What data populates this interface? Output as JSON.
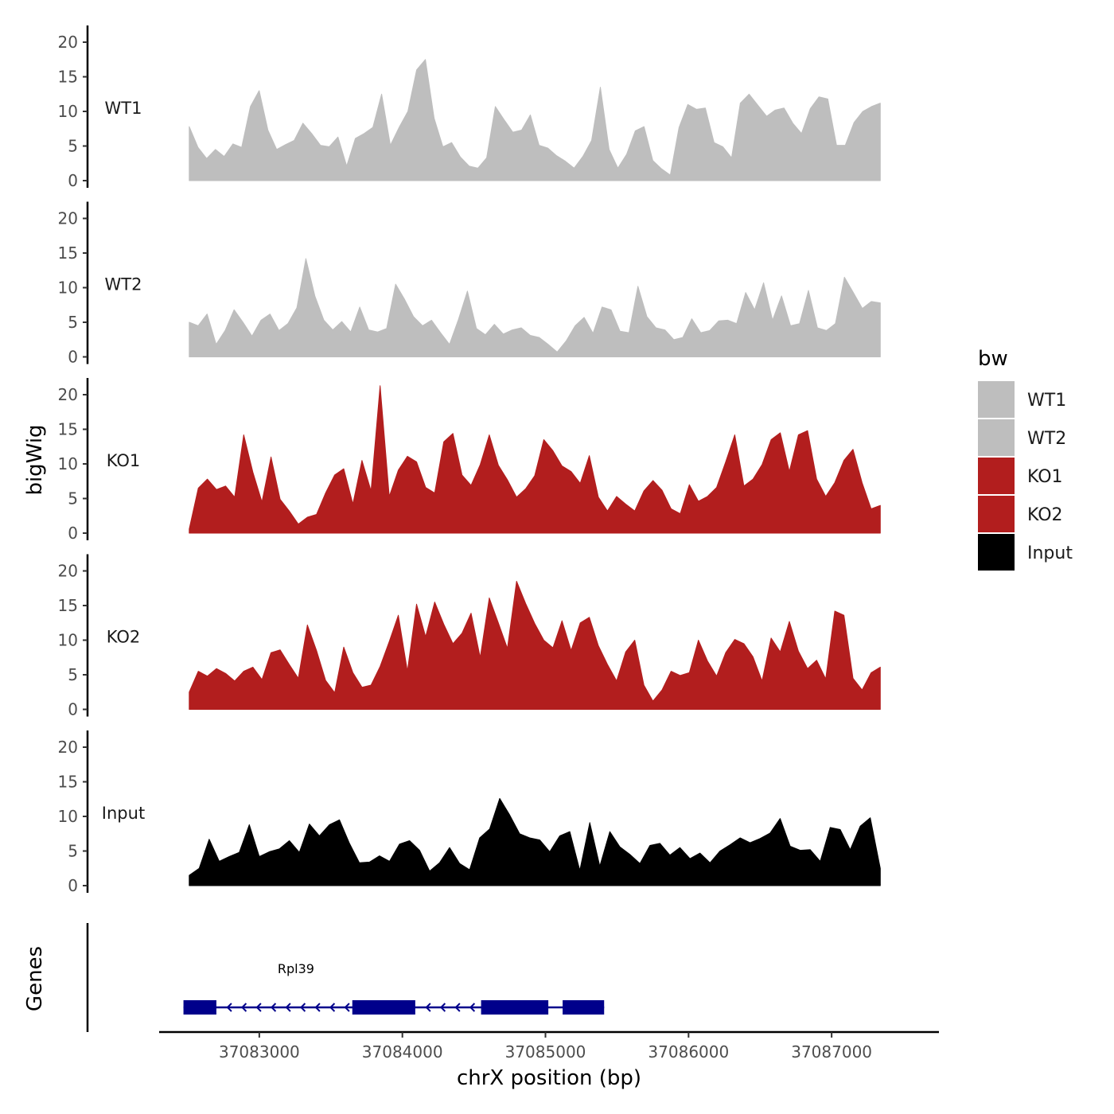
{
  "chart_data": {
    "type": "area",
    "ylabel": "bigWig",
    "xlabel": "chrX position (bp)",
    "gene_track_label": "Genes",
    "ylim": [
      0,
      22
    ],
    "yticks": [
      0,
      5,
      10,
      15,
      20
    ],
    "xlim": [
      37082300,
      37087750
    ],
    "xticks": [
      37083000,
      37084000,
      37085000,
      37086000,
      37087000
    ],
    "xtick_labels": [
      "37083000",
      "37084000",
      "37085000",
      "37086000",
      "37087000"
    ],
    "legend": {
      "title": "bw",
      "position": "right",
      "entries": [
        {
          "label": "WT1",
          "color": "#BEBEBE"
        },
        {
          "label": "WT2",
          "color": "#BEBEBE"
        },
        {
          "label": "KO1",
          "color": "#B21E1E"
        },
        {
          "label": "KO2",
          "color": "#B21E1E"
        },
        {
          "label": "Input",
          "color": "#000000"
        }
      ]
    },
    "series": [
      {
        "name": "WT1",
        "color": "#BEBEBE",
        "x_start": 37082510,
        "x_end": 37087340,
        "values": [
          7.8,
          4.8,
          3.2,
          4.5,
          3.5,
          5.3,
          4.8,
          10.7,
          13,
          7.3,
          4.5,
          5.2,
          5.8,
          8.3,
          6.8,
          5.1,
          4.9,
          6.3,
          2.1,
          6.1,
          6.8,
          7.7,
          12.5,
          5.1,
          7.7,
          10,
          16,
          17.5,
          9,
          4.9,
          5.5,
          3.4,
          2.1,
          1.8,
          3.3,
          10.7,
          8.8,
          7,
          7.3,
          9.5,
          5.1,
          4.7,
          3.6,
          2.8,
          1.8,
          3.5,
          5.8,
          13.5,
          4.5,
          1.8,
          3.8,
          7.2,
          7.8,
          2.9,
          1.7,
          0.8,
          7.7,
          11,
          10.3,
          10.5,
          5.5,
          4.9,
          3.3,
          11.2,
          12.5,
          10.9,
          9.3,
          10.2,
          10.5,
          8.3,
          6.8,
          10.4,
          12.1,
          11.8,
          5.1,
          5.1,
          8.4,
          10,
          10.7,
          11.2
        ]
      },
      {
        "name": "WT2",
        "color": "#BEBEBE",
        "x_start": 37082510,
        "x_end": 37087340,
        "values": [
          5,
          4.5,
          6.2,
          1.8,
          3.8,
          6.8,
          5,
          3,
          5.3,
          6.2,
          3.8,
          4.8,
          7.1,
          14.2,
          8.8,
          5.3,
          3.9,
          5.1,
          3.6,
          7.2,
          3.9,
          3.6,
          4.1,
          10.5,
          8.3,
          5.8,
          4.5,
          5.3,
          3.5,
          1.8,
          5.4,
          9.5,
          4.1,
          3.2,
          4.7,
          3.3,
          3.9,
          4.2,
          3.1,
          2.8,
          1.8,
          0.7,
          2.3,
          4.5,
          5.7,
          3.4,
          7.2,
          6.8,
          3.7,
          3.5,
          10.2,
          5.8,
          4.2,
          3.9,
          2.5,
          2.8,
          5.5,
          3.5,
          3.8,
          5.2,
          5.3,
          4.8,
          9.3,
          6.8,
          10.7,
          5.3,
          8.8,
          4.5,
          4.8,
          9.6,
          4.2,
          3.8,
          4.8,
          11.5,
          9.3,
          7,
          8,
          7.8
        ]
      },
      {
        "name": "KO1",
        "color": "#B21E1E",
        "x_start": 37082510,
        "x_end": 37087340,
        "values": [
          0.6,
          6.5,
          7.8,
          6.3,
          6.8,
          5.2,
          14.2,
          8.8,
          4.5,
          11,
          4.9,
          3.2,
          1.3,
          2.3,
          2.7,
          5.8,
          8.4,
          9.3,
          4.2,
          10.5,
          6.1,
          21.3,
          5.3,
          9.1,
          11.1,
          10.3,
          6.6,
          5.8,
          13.2,
          14.4,
          8.4,
          6.9,
          9.9,
          14.2,
          9.8,
          7.7,
          5.2,
          6.4,
          8.3,
          13.5,
          11.9,
          9.7,
          8.9,
          7.2,
          11.2,
          5.2,
          3.2,
          5.3,
          4.2,
          3.2,
          6.1,
          7.6,
          6.2,
          3.5,
          2.8,
          7,
          4.6,
          5.3,
          6.6,
          10.3,
          14.2,
          6.8,
          7.8,
          9.9,
          13.5,
          14.5,
          8.9,
          14.2,
          14.8,
          7.8,
          5.3,
          7.3,
          10.5,
          12.1,
          7.3,
          3.5,
          4
        ]
      },
      {
        "name": "KO2",
        "color": "#B21E1E",
        "x_start": 37082510,
        "x_end": 37087340,
        "values": [
          2.5,
          5.5,
          4.8,
          5.9,
          5.2,
          4.1,
          5.5,
          6.1,
          4.3,
          8.2,
          8.6,
          6.5,
          4.5,
          12.2,
          8.5,
          4.2,
          2.4,
          9,
          5.3,
          3.2,
          3.5,
          6.2,
          9.8,
          13.6,
          5.5,
          15.2,
          10.5,
          15.5,
          12.3,
          9.5,
          11,
          13.9,
          7.5,
          16.1,
          12.5,
          8.8,
          18.5,
          15.3,
          12.4,
          10,
          8.9,
          12.8,
          8.5,
          12.5,
          13.3,
          9.2,
          6.5,
          4.1,
          8.3,
          10,
          3.5,
          1.2,
          2.8,
          5.5,
          4.9,
          5.3,
          10,
          7,
          4.8,
          8.2,
          10.1,
          9.5,
          7.6,
          4.1,
          10.3,
          8.3,
          12.7,
          8.4,
          5.9,
          7.1,
          4.4,
          14.2,
          13.6,
          4.5,
          2.8,
          5.3,
          6.1
        ]
      },
      {
        "name": "Input",
        "color": "#000000",
        "x_start": 37082510,
        "x_end": 37087340,
        "values": [
          1.5,
          2.5,
          6.7,
          3.5,
          4.2,
          4.8,
          8.8,
          4.2,
          4.9,
          5.3,
          6.5,
          4.8,
          8.9,
          7.2,
          8.8,
          9.5,
          6.1,
          3.3,
          3.4,
          4.3,
          3.5,
          6,
          6.5,
          5.1,
          2.1,
          3.3,
          5.5,
          3.2,
          2.3,
          6.9,
          8.2,
          12.6,
          10.2,
          7.5,
          6.9,
          6.6,
          4.9,
          7.2,
          7.8,
          2.2,
          9.1,
          2.8,
          7.8,
          5.6,
          4.5,
          3.2,
          5.8,
          6.1,
          4.4,
          5.5,
          3.9,
          4.7,
          3.3,
          5,
          5.9,
          6.9,
          6.2,
          6.8,
          7.6,
          9.7,
          5.7,
          5.1,
          5.2,
          3.5,
          8.4,
          8.1,
          5.2,
          8.6,
          9.8,
          2.5
        ]
      }
    ],
    "gene": {
      "name": "Rpl39",
      "color": "#00008B",
      "strand": "-",
      "start": 37082470,
      "end": 37085410,
      "exons": [
        [
          37082470,
          37082700
        ],
        [
          37083650,
          37084090
        ],
        [
          37084550,
          37085020
        ],
        [
          37085120,
          37085410
        ]
      ]
    }
  }
}
